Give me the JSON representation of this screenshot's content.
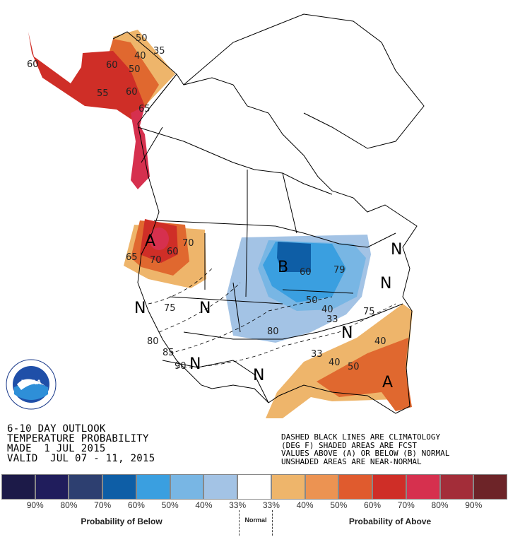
{
  "title_block": {
    "line1": "6-10 DAY OUTLOOK",
    "line2": "TEMPERATURE PROBABILITY",
    "line3": "MADE  1 JUL 2015",
    "line4": "VALID  JUL 07 - 11, 2015"
  },
  "note_block": {
    "line1": "DASHED BLACK LINES ARE CLIMATOLOGY",
    "line2": "(DEG F) SHADED AREAS ARE FCST",
    "line3": "VALUES ABOVE (A) OR BELOW (B) NORMAL",
    "line4": "UNSHADED AREAS ARE NEAR-NORMAL"
  },
  "logo": {
    "text": "NOAA",
    "ring_text": "NATIONAL OCEANIC AND ATMOSPHERIC ADMINISTRATION · U.S. DEPARTMENT OF COMMERCE"
  },
  "map_labels": {
    "above": "A",
    "below": "B",
    "normal": "N"
  },
  "contour_labels": [
    "60",
    "50",
    "40",
    "35",
    "55",
    "60",
    "60",
    "50",
    "65",
    "65",
    "70",
    "60",
    "70",
    "60",
    "79",
    "50",
    "40",
    "33",
    "75",
    "75",
    "80",
    "80",
    "85",
    "90",
    "33",
    "40",
    "50",
    "40"
  ],
  "legend": {
    "colors": [
      "#1c1a48",
      "#201d5c",
      "#2d3f70",
      "#0e5ea6",
      "#3a9fe0",
      "#78b6e4",
      "#a3c3e5",
      "#ffffff",
      "#eeb56b",
      "#ec9352",
      "#e05b2e",
      "#cf2e27",
      "#d6304e",
      "#a32d39",
      "#6d2428"
    ],
    "ticks": [
      "90%",
      "80%",
      "70%",
      "60%",
      "50%",
      "40%",
      "33%",
      "33%",
      "40%",
      "50%",
      "60%",
      "70%",
      "80%",
      "90%"
    ],
    "below_label": "Probability of Below",
    "normal_label": "Normal",
    "above_label": "Probability of Above"
  }
}
